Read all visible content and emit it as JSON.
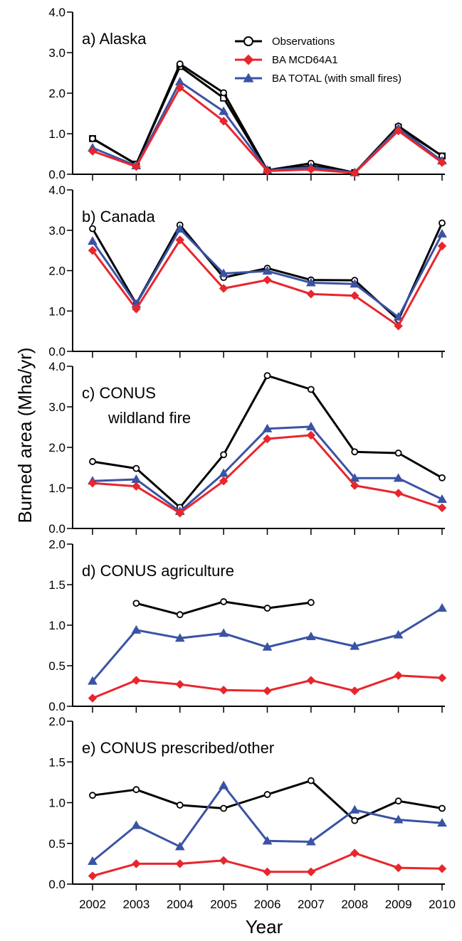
{
  "chart_data": {
    "type": "line",
    "xlabel": "Year",
    "ylabel": "Burned area (Mha/yr)",
    "x": [
      2002,
      2003,
      2004,
      2005,
      2006,
      2007,
      2008,
      2009,
      2010
    ],
    "x_tick_labels": [
      "2002",
      "2003",
      "2004",
      "2005",
      "2006",
      "2007",
      "2008",
      "2009",
      "2010"
    ],
    "legend": {
      "placement": "top-right of panel a",
      "entries": [
        "Observations",
        "BA MCD64A1",
        "BA TOTAL (with small fires)"
      ]
    },
    "series_styles": [
      {
        "name": "Observations",
        "color": "#000000",
        "marker": "open-circle"
      },
      {
        "name": "BA MCD64A1",
        "color": "#e8262d",
        "marker": "diamond"
      },
      {
        "name": "BA TOTAL (with small fires)",
        "color": "#3a53a4",
        "marker": "triangle"
      }
    ],
    "panels": [
      {
        "title": "a) Alaska",
        "ylim": [
          0,
          4
        ],
        "yticks": [
          0,
          1,
          2,
          3,
          4
        ],
        "ytick_labels": [
          "0.0",
          "1.0",
          "2.0",
          "3.0",
          "4.0"
        ],
        "series": [
          {
            "name": "Observations",
            "values": [
              0.88,
              0.25,
              2.72,
              2.01,
              0.1,
              0.27,
              0.04,
              1.19,
              0.45
            ]
          },
          {
            "name": "Observations (alt)",
            "values": [
              0.88,
              0.25,
              2.66,
              1.88,
              0.1,
              0.2,
              0.04,
              1.16,
              0.45
            ]
          },
          {
            "name": "BA MCD64A1",
            "values": [
              0.57,
              0.19,
              2.14,
              1.31,
              0.08,
              0.12,
              0.03,
              1.07,
              0.29
            ]
          },
          {
            "name": "BA TOTAL (with small fires)",
            "values": [
              0.65,
              0.21,
              2.28,
              1.55,
              0.1,
              0.17,
              0.04,
              1.13,
              0.33
            ]
          }
        ]
      },
      {
        "title": "b) Canada",
        "ylim": [
          0,
          4
        ],
        "yticks": [
          0,
          1,
          2,
          3,
          4
        ],
        "ytick_labels": [
          "0.0",
          "1.0",
          "2.0",
          "3.0",
          "4.0"
        ],
        "series": [
          {
            "name": "Observations",
            "values": [
              3.04,
              1.18,
              3.13,
              1.83,
              2.06,
              1.77,
              1.76,
              0.78,
              3.18
            ]
          },
          {
            "name": "BA MCD64A1",
            "values": [
              2.5,
              1.05,
              2.76,
              1.56,
              1.77,
              1.42,
              1.38,
              0.63,
              2.61
            ]
          },
          {
            "name": "BA TOTAL (with small fires)",
            "values": [
              2.73,
              1.17,
              3.03,
              1.93,
              1.99,
              1.7,
              1.67,
              0.85,
              2.91
            ]
          }
        ]
      },
      {
        "title": "c) CONUS",
        "title_line2": "wildland fire",
        "ylim": [
          0,
          4
        ],
        "yticks": [
          0,
          1,
          2,
          3,
          4
        ],
        "ytick_labels": [
          "0.0",
          "1.0",
          "2.0",
          "3.0",
          "4.0"
        ],
        "series": [
          {
            "name": "Observations",
            "values": [
              1.65,
              1.48,
              0.52,
              1.82,
              3.77,
              3.43,
              1.89,
              1.86,
              1.25
            ]
          },
          {
            "name": "BA MCD64A1",
            "values": [
              1.12,
              1.04,
              0.38,
              1.17,
              2.21,
              2.3,
              1.06,
              0.87,
              0.51
            ]
          },
          {
            "name": "BA TOTAL (with small fires)",
            "values": [
              1.17,
              1.21,
              0.42,
              1.36,
              2.46,
              2.51,
              1.24,
              1.24,
              0.72
            ]
          }
        ]
      },
      {
        "title": "d) CONUS agriculture",
        "ylim": [
          0,
          2
        ],
        "yticks": [
          0,
          0.5,
          1,
          1.5,
          2
        ],
        "ytick_labels": [
          "0.0",
          "0.5",
          "1.0",
          "1.5",
          "2.0"
        ],
        "series": [
          {
            "name": "Observations",
            "values": [
              null,
              1.27,
              1.13,
              1.29,
              1.21,
              1.28,
              null,
              null,
              null
            ]
          },
          {
            "name": "BA MCD64A1",
            "values": [
              0.1,
              0.32,
              0.27,
              0.2,
              0.19,
              0.32,
              0.19,
              0.38,
              0.35
            ]
          },
          {
            "name": "BA TOTAL (with small fires)",
            "values": [
              0.31,
              0.94,
              0.84,
              0.9,
              0.73,
              0.86,
              0.74,
              0.88,
              1.21
            ]
          }
        ]
      },
      {
        "title": "e) CONUS prescribed/other",
        "ylim": [
          0,
          2
        ],
        "yticks": [
          0,
          0.5,
          1,
          1.5,
          2
        ],
        "ytick_labels": [
          "0.0",
          "0.5",
          "1.0",
          "1.5",
          "2.0"
        ],
        "series": [
          {
            "name": "Observations",
            "values": [
              1.09,
              1.16,
              0.97,
              0.93,
              1.1,
              1.27,
              0.78,
              1.02,
              0.93
            ]
          },
          {
            "name": "BA MCD64A1",
            "values": [
              0.1,
              0.25,
              0.25,
              0.29,
              0.15,
              0.15,
              0.38,
              0.2,
              0.19
            ]
          },
          {
            "name": "BA TOTAL (with small fires)",
            "values": [
              0.28,
              0.72,
              0.46,
              1.21,
              0.53,
              0.52,
              0.91,
              0.79,
              0.75
            ]
          }
        ]
      }
    ]
  }
}
